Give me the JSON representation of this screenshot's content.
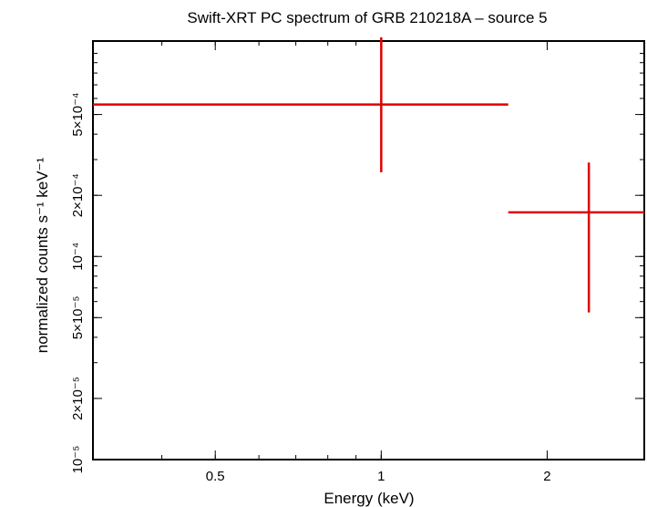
{
  "chart_data": {
    "type": "scatter",
    "title": "Swift-XRT PC spectrum of GRB 210218A – source 5",
    "xlabel": "Energy (keV)",
    "ylabel": "normalized counts s⁻¹ keV⁻¹",
    "x_scale": "log",
    "y_scale": "log",
    "xlim": [
      0.3,
      3.0
    ],
    "ylim": [
      1e-05,
      0.00115
    ],
    "x_ticks": [
      {
        "value": 0.5,
        "label": "0.5"
      },
      {
        "value": 1,
        "label": "1"
      },
      {
        "value": 2,
        "label": "2"
      }
    ],
    "y_ticks": [
      {
        "value": 1e-05,
        "label": "10⁻⁵"
      },
      {
        "value": 2e-05,
        "label": "2×10⁻⁵"
      },
      {
        "value": 5e-05,
        "label": "5×10⁻⁵"
      },
      {
        "value": 0.0001,
        "label": "10⁻⁴"
      },
      {
        "value": 0.0002,
        "label": "2×10⁻⁴"
      },
      {
        "value": 0.0005,
        "label": "5×10⁻⁴"
      }
    ],
    "series": [
      {
        "color": "#e00000",
        "points": [
          {
            "x": 1.0,
            "x_low": 0.3,
            "x_high": 1.7,
            "y": 0.00056,
            "y_low": 0.00026,
            "y_high": 0.0012
          },
          {
            "x": 2.38,
            "x_low": 1.7,
            "x_high": 3.0,
            "y": 0.000165,
            "y_low": 5.3e-05,
            "y_high": 0.00029
          }
        ]
      }
    ]
  }
}
